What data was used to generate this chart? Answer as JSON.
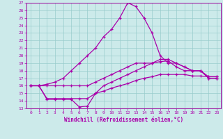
{
  "title": "",
  "xlabel": "Windchill (Refroidissement éolien,°C)",
  "bg_color": "#cceaea",
  "line_color": "#aa00aa",
  "grid_color": "#99cccc",
  "spine_color": "#990099",
  "xlim": [
    -0.5,
    23.5
  ],
  "ylim": [
    13,
    27
  ],
  "yticks": [
    13,
    14,
    15,
    16,
    17,
    18,
    19,
    20,
    21,
    22,
    23,
    24,
    25,
    26,
    27
  ],
  "xticks": [
    0,
    1,
    2,
    3,
    4,
    5,
    6,
    7,
    8,
    9,
    10,
    11,
    12,
    13,
    14,
    15,
    16,
    17,
    18,
    19,
    20,
    21,
    22,
    23
  ],
  "series": [
    {
      "x": [
        0,
        1,
        2,
        3,
        4,
        5,
        6,
        7,
        8,
        9,
        10,
        11,
        12,
        13,
        14,
        15,
        16,
        17,
        18,
        19,
        20,
        21,
        22,
        23
      ],
      "y": [
        16,
        16,
        16.2,
        16.5,
        17,
        18,
        19,
        20,
        21,
        22.5,
        23.5,
        25,
        27,
        26.5,
        25,
        23,
        20,
        19,
        19,
        18.5,
        18,
        18,
        17,
        17
      ]
    },
    {
      "x": [
        0,
        1,
        2,
        3,
        4,
        5,
        6,
        7,
        8,
        9,
        10,
        11,
        12,
        13,
        14,
        15,
        16,
        17,
        18,
        19,
        20,
        21,
        22,
        23
      ],
      "y": [
        16,
        16,
        14.2,
        14.2,
        14.2,
        14.2,
        13.2,
        13.3,
        15,
        16,
        16.5,
        17,
        17.5,
        18,
        18.5,
        19,
        19.5,
        19.5,
        19,
        18.5,
        18,
        18,
        17,
        17
      ]
    },
    {
      "x": [
        0,
        1,
        2,
        3,
        4,
        5,
        6,
        7,
        8,
        9,
        10,
        11,
        12,
        13,
        14,
        15,
        16,
        17,
        18,
        19,
        20,
        21,
        22,
        23
      ],
      "y": [
        16,
        16,
        14.3,
        14.3,
        14.3,
        14.3,
        14.3,
        14.3,
        15,
        15.3,
        15.7,
        16,
        16.3,
        16.7,
        17,
        17.2,
        17.5,
        17.5,
        17.5,
        17.5,
        17.3,
        17.3,
        17.2,
        17.2
      ]
    },
    {
      "x": [
        0,
        1,
        2,
        3,
        4,
        5,
        6,
        7,
        8,
        9,
        10,
        11,
        12,
        13,
        14,
        15,
        16,
        17,
        18,
        19,
        20,
        21,
        22,
        23
      ],
      "y": [
        16,
        16,
        16,
        16,
        16,
        16,
        16,
        16,
        16.5,
        17,
        17.5,
        18,
        18.5,
        19,
        19,
        19,
        19.2,
        19.3,
        18.5,
        18,
        18,
        18,
        17.2,
        17.2
      ]
    }
  ]
}
